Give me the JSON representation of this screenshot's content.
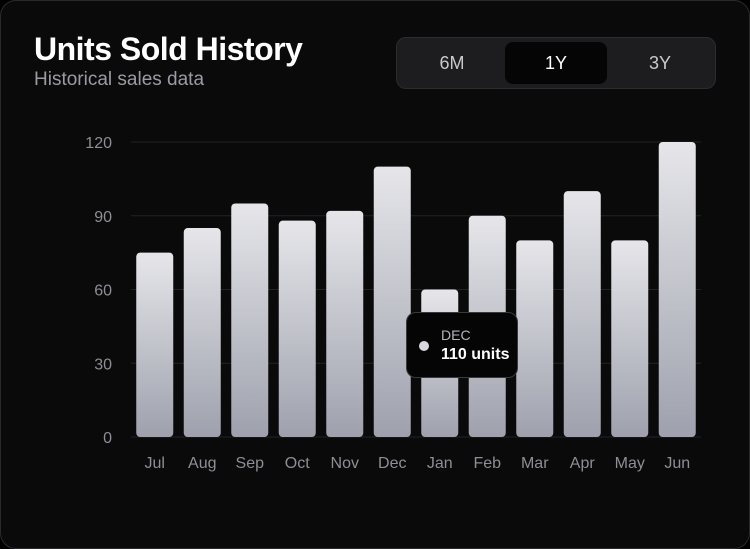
{
  "header": {
    "title": "Units Sold History",
    "subtitle": "Historical sales data"
  },
  "range_selector": {
    "options": [
      "6M",
      "1Y",
      "3Y"
    ],
    "selected": "1Y"
  },
  "tooltip": {
    "month": "DEC",
    "value_text": "110 units"
  },
  "colors": {
    "bar_top": "#e6e6ea",
    "bar_bottom": "#9ea1ad",
    "grid": "#222226",
    "tick_text": "#8e8e96",
    "background": "#0a0a0b"
  },
  "chart_data": {
    "type": "bar",
    "categories": [
      "Jul",
      "Aug",
      "Sep",
      "Oct",
      "Nov",
      "Dec",
      "Jan",
      "Feb",
      "Mar",
      "Apr",
      "May",
      "Jun"
    ],
    "values": [
      75,
      85,
      95,
      88,
      92,
      110,
      60,
      90,
      80,
      100,
      80,
      120
    ],
    "ylim": [
      0,
      120
    ],
    "yticks": [
      0,
      30,
      60,
      90,
      120
    ],
    "grid": true,
    "title": "Units Sold History",
    "subtitle": "Historical sales data"
  }
}
